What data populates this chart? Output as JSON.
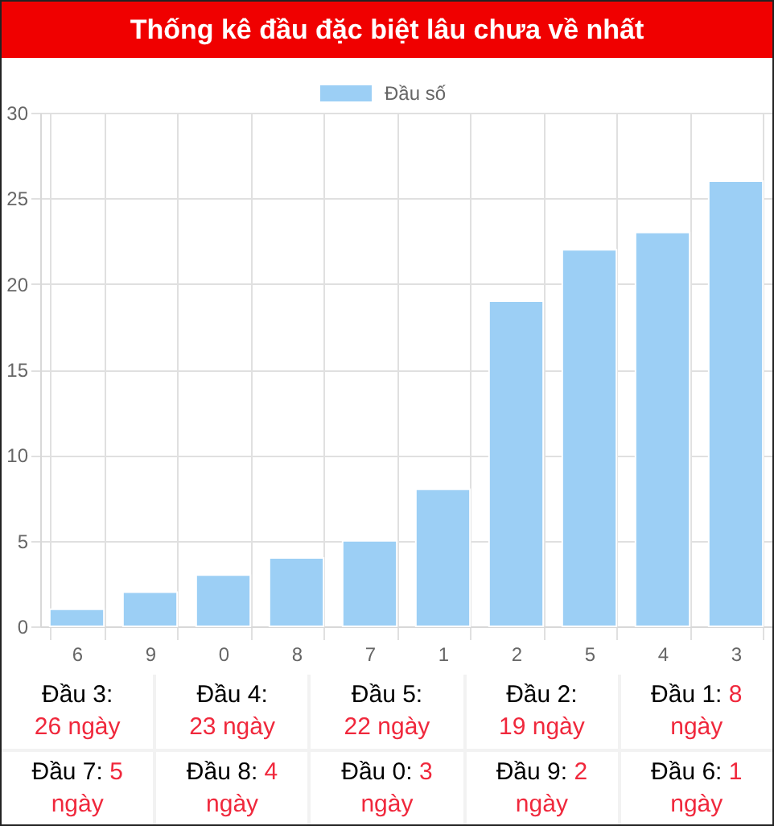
{
  "chart_data": {
    "type": "bar",
    "title": "Thống kê đầu đặc biệt lâu chưa về nhất",
    "categories": [
      "6",
      "9",
      "0",
      "8",
      "7",
      "1",
      "2",
      "5",
      "4",
      "3"
    ],
    "series": [
      {
        "name": "Đầu số",
        "color": "#9ccff5",
        "values": [
          1,
          2,
          3,
          4,
          5,
          8,
          19,
          22,
          23,
          26
        ]
      }
    ],
    "ylim": [
      0,
      30
    ],
    "yticks": [
      0,
      5,
      10,
      15,
      20,
      25,
      30
    ],
    "grid": true,
    "legend": "top",
    "annotations": [
      "Đầu 3: 26 ngày",
      "Đầu 4: 23 ngày",
      "Đầu 5: 22 ngày",
      "Đầu 2: 19 ngày",
      "Đầu 1: 8 ngày",
      "Đầu 7: 5 ngày",
      "Đầu 8: 4 ngày",
      "Đầu 0: 3 ngày",
      "Đầu 9: 2 ngày",
      "Đầu 6: 1 ngày"
    ]
  }
}
